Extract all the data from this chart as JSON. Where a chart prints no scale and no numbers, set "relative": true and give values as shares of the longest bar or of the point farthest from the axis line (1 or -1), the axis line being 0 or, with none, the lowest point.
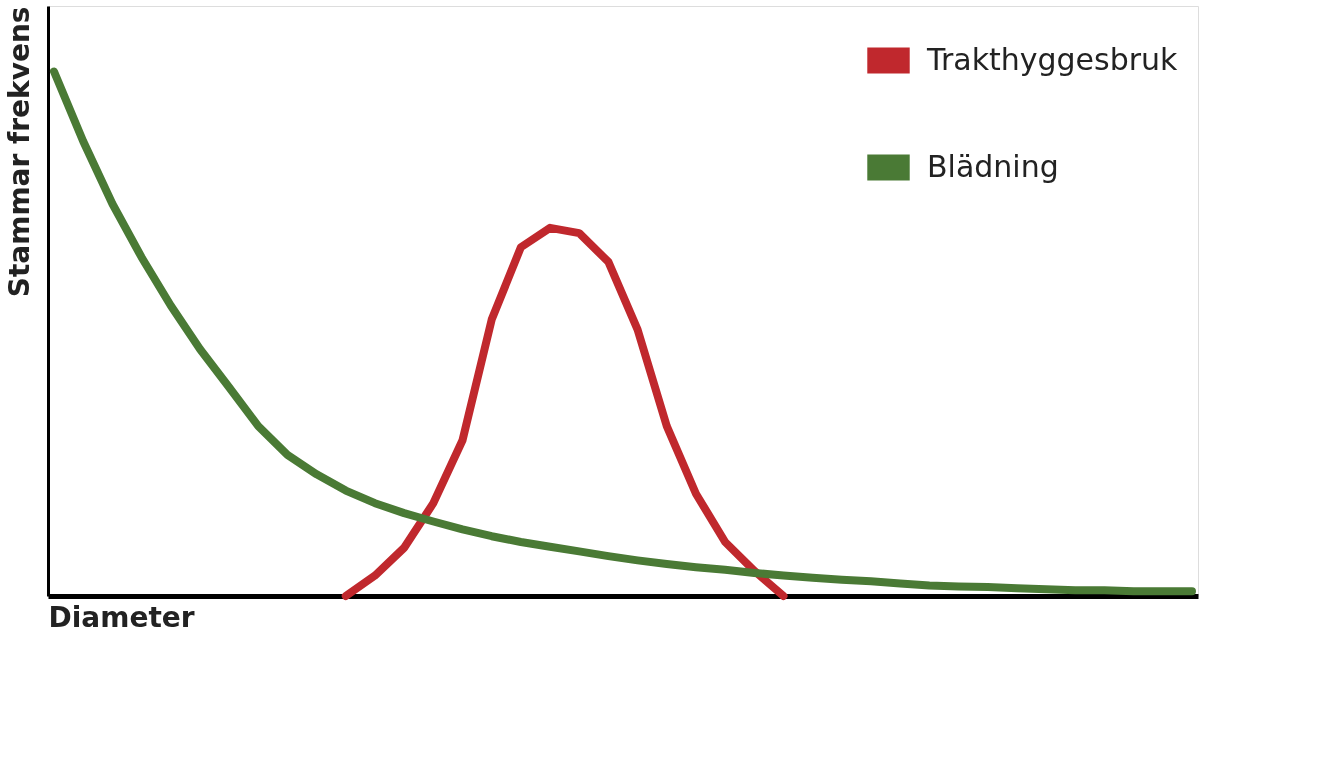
{
  "chart_data": {
    "type": "line",
    "relative": true,
    "xlabel": "Diameter",
    "ylabel": "Stammar frekvens",
    "categories": [
      null,
      null,
      null,
      null,
      null,
      null,
      null,
      null,
      null,
      null,
      null,
      null,
      null,
      null,
      null,
      null,
      null,
      null,
      null,
      null,
      null,
      null,
      null,
      null,
      null,
      null,
      null,
      null,
      null,
      null,
      null,
      null,
      null,
      null,
      null,
      null,
      null,
      null,
      null,
      null
    ],
    "series": [
      {
        "name": "Trakthyggesbruk",
        "color": "#c0282d",
        "values": [
          null,
          null,
          null,
          null,
          null,
          null,
          null,
          null,
          null,
          null,
          0,
          0.039,
          0.092,
          0.177,
          0.297,
          0.527,
          0.665,
          0.702,
          0.692,
          0.637,
          0.508,
          0.324,
          0.195,
          0.103,
          0.048,
          0,
          null,
          null,
          null,
          null,
          null,
          null,
          null,
          null,
          null,
          null,
          null,
          null,
          null,
          null
        ]
      },
      {
        "name": "Blädning",
        "color": "#4a7a35",
        "values": [
          1,
          0.867,
          0.748,
          0.646,
          0.554,
          0.471,
          0.398,
          0.324,
          0.269,
          0.232,
          0.201,
          0.177,
          0.158,
          0.142,
          0.127,
          0.114,
          0.103,
          0.094,
          0.085,
          0.076,
          0.068,
          0.061,
          0.055,
          0.05,
          0.044,
          0.039,
          0.035,
          0.031,
          0.028,
          0.024,
          0.02,
          0.018,
          0.017,
          0.015,
          0.013,
          0.011,
          0.011,
          0.009,
          0.009,
          0.009
        ]
      }
    ],
    "legend": "top right",
    "tick_labels": false,
    "grid": false,
    "marker": "none",
    "line_style": "solid"
  }
}
